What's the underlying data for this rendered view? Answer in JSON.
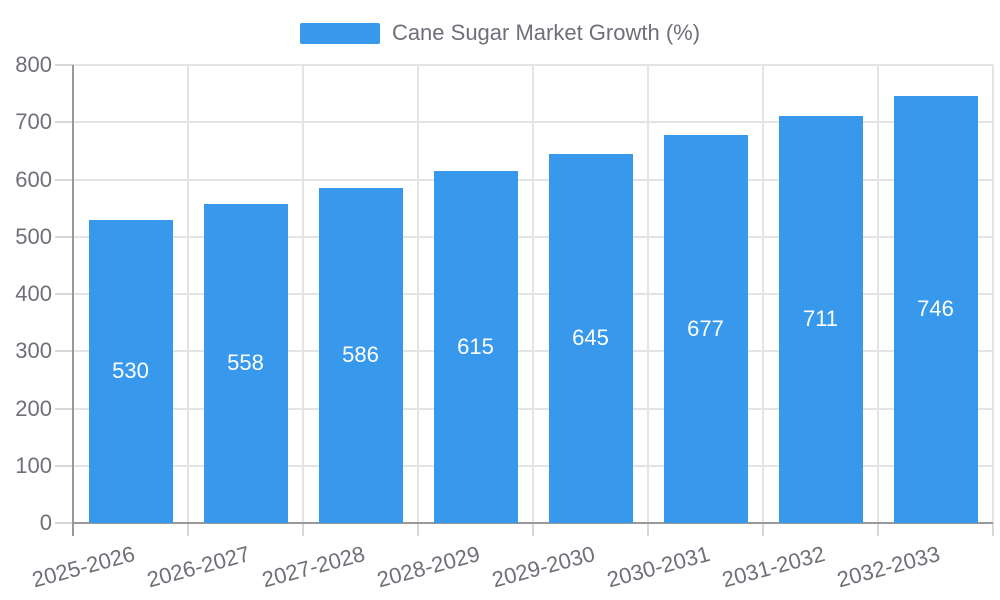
{
  "chart_data": {
    "type": "bar",
    "title": "",
    "legend": "Cane Sugar Market Growth (%)",
    "categories": [
      "2025-2026",
      "2026-2027",
      "2027-2028",
      "2028-2029",
      "2029-2030",
      "2030-2031",
      "2031-2032",
      "2032-2033"
    ],
    "values": [
      530,
      558,
      586,
      615,
      645,
      677,
      711,
      746
    ],
    "y_ticks": [
      0,
      100,
      200,
      300,
      400,
      500,
      600,
      700,
      800
    ],
    "ylim": [
      0,
      800
    ],
    "xlabel": "",
    "ylabel": "",
    "x_label_rotation_deg": -15,
    "grid": true,
    "legend_position": "top-center",
    "colors": {
      "bar": "#3899EC",
      "value_label": "#ffffff",
      "axis_text": "#6e7079",
      "axis_line": "#999999",
      "grid_line": "#e4e4e4",
      "tick_line": "#d8d8d8"
    }
  }
}
